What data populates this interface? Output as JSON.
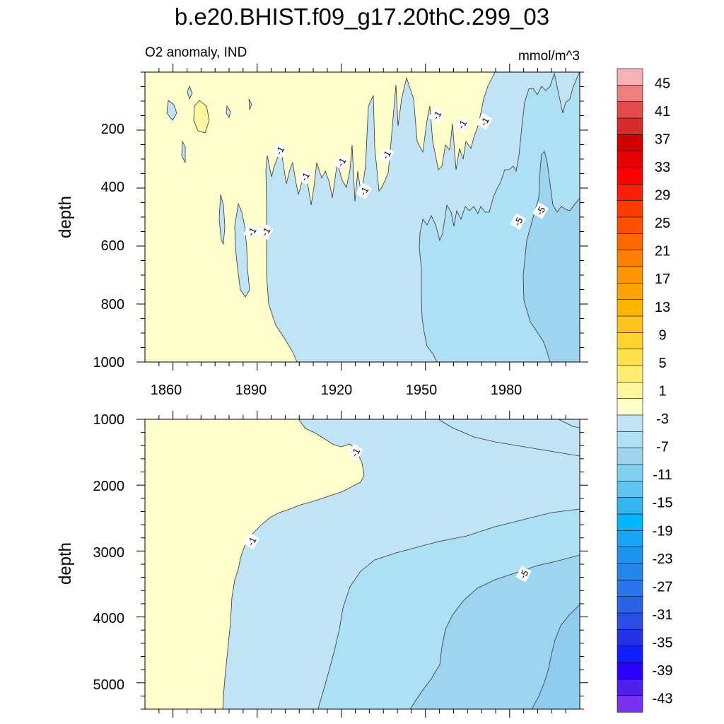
{
  "chart_data": [
    {
      "type": "contour",
      "title": "b.e20.BHIST.f09_g17.20thC.299_03",
      "subtitle_left": "O2 anomaly, IND",
      "subtitle_right": "mmol/m^3",
      "ylabel": "depth",
      "xlim": [
        1850,
        2005
      ],
      "ylim": [
        0,
        1000
      ],
      "y_reversed": true,
      "x_ticks": [
        1860,
        1890,
        1920,
        1950,
        1980
      ],
      "y_ticks": [
        200,
        400,
        600,
        800,
        1000
      ],
      "contour_levels": [
        1,
        -1,
        -3,
        -5,
        -7
      ],
      "contour_labels": [
        {
          "text": "-1",
          "x": 1888,
          "y": 550
        },
        {
          "text": "-1",
          "x": 1893,
          "y": 550
        },
        {
          "text": "-1",
          "x": 1898,
          "y": 270
        },
        {
          "text": "-1",
          "x": 1907,
          "y": 360
        },
        {
          "text": "-1",
          "x": 1920,
          "y": 310
        },
        {
          "text": "-1",
          "x": 1928,
          "y": 410
        },
        {
          "text": "-1",
          "x": 1936,
          "y": 285
        },
        {
          "text": "-1",
          "x": 1954,
          "y": 148
        },
        {
          "text": "-1",
          "x": 1963,
          "y": 180
        },
        {
          "text": "-1",
          "x": 1971,
          "y": 170
        },
        {
          "text": "-5",
          "x": 1983,
          "y": 515
        },
        {
          "text": "-5",
          "x": 1991,
          "y": 478
        }
      ]
    },
    {
      "type": "contour",
      "ylabel": "depth",
      "xlim": [
        1850,
        2005
      ],
      "ylim": [
        1000,
        5400
      ],
      "y_reversed": true,
      "y_ticks": [
        1000,
        2000,
        3000,
        4000,
        5000
      ],
      "contour_levels": [
        1,
        -1,
        -3,
        -5,
        -7
      ],
      "contour_labels": [
        {
          "text": "-1",
          "x": 1925,
          "y": 1500
        },
        {
          "text": "-1",
          "x": 1888,
          "y": 2850
        },
        {
          "text": "-5",
          "x": 1985,
          "y": 3350
        }
      ]
    }
  ],
  "colorbar": {
    "labels": [
      "45",
      "41",
      "37",
      "33",
      "29",
      "25",
      "21",
      "17",
      "13",
      "9",
      "5",
      "1",
      "-3",
      "-7",
      "-11",
      "-15",
      "-19",
      "-23",
      "-27",
      "-31",
      "-35",
      "-39",
      "-43"
    ],
    "colors": [
      "#f7b3b3",
      "#ef8080",
      "#e34b4b",
      "#d72b2b",
      "#d00000",
      "#e60000",
      "#ff0000",
      "#ff1e0a",
      "#ff3c00",
      "#ff5000",
      "#ff6a00",
      "#ff8000",
      "#ff9600",
      "#ffa300",
      "#ffb400",
      "#ffc31e",
      "#ffd32a",
      "#ffe24a",
      "#ffee70",
      "#fff6a0",
      "#ffffcc",
      "#c0e4f5",
      "#ade0f4",
      "#9dd5f0",
      "#7fcfef",
      "#5fc4ee",
      "#35b5ee",
      "#00b4ff",
      "#18a4f7",
      "#1d94f0",
      "#2585ee",
      "#2c76ed",
      "#2a62e8",
      "#2b4fe2",
      "#2432e6",
      "#1020ff",
      "#2a00ff",
      "#4d20f0",
      "#7c30f0"
    ]
  }
}
